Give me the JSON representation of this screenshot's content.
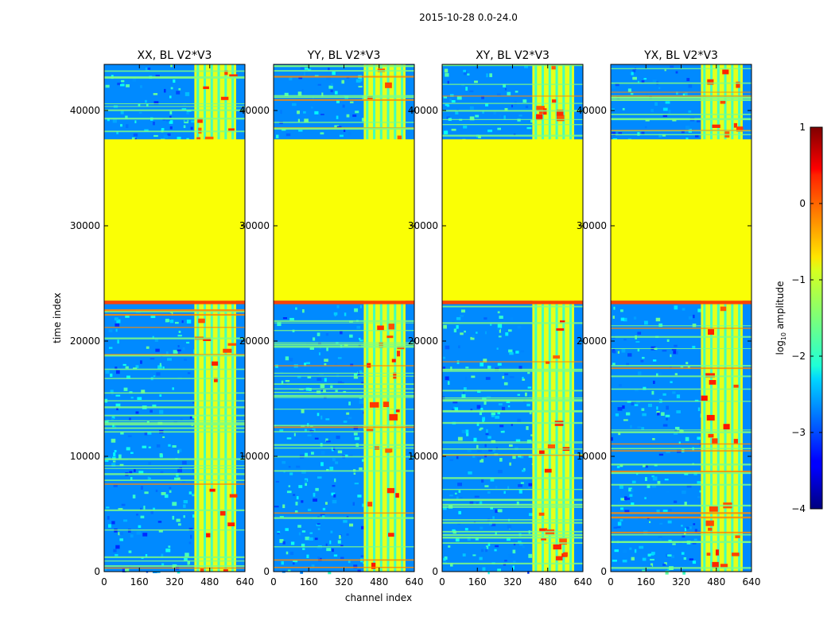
{
  "chart_data": {
    "type": "heatmap",
    "suptitle": "2015-10-28 0.0-24.0",
    "panels": [
      {
        "title": "XX, BL V2*V3"
      },
      {
        "title": "YY, BL V2*V3"
      },
      {
        "title": "XY, BL V2*V3"
      },
      {
        "title": "YX, BL V2*V3"
      }
    ],
    "xlabel": "channel index",
    "ylabel": "time index",
    "xlim": [
      0,
      640
    ],
    "ylim": [
      0,
      44000
    ],
    "xticks": [
      0,
      160,
      320,
      480,
      640
    ],
    "yticks": [
      0,
      10000,
      20000,
      30000,
      40000
    ],
    "colorbar": {
      "label": "log10 amplitude",
      "min": -4,
      "max": 1,
      "ticks": [
        -4,
        -3,
        -2,
        -1,
        0,
        1
      ],
      "colormap": "jet"
    },
    "regions": {
      "flagged_block_time": [
        23500,
        37500
      ],
      "flagged_block_value": -0.9,
      "red_band_time": [
        23200,
        23500
      ],
      "active_channels": [
        410,
        600
      ],
      "background_level": -2.7,
      "active_level": -1.0
    }
  }
}
